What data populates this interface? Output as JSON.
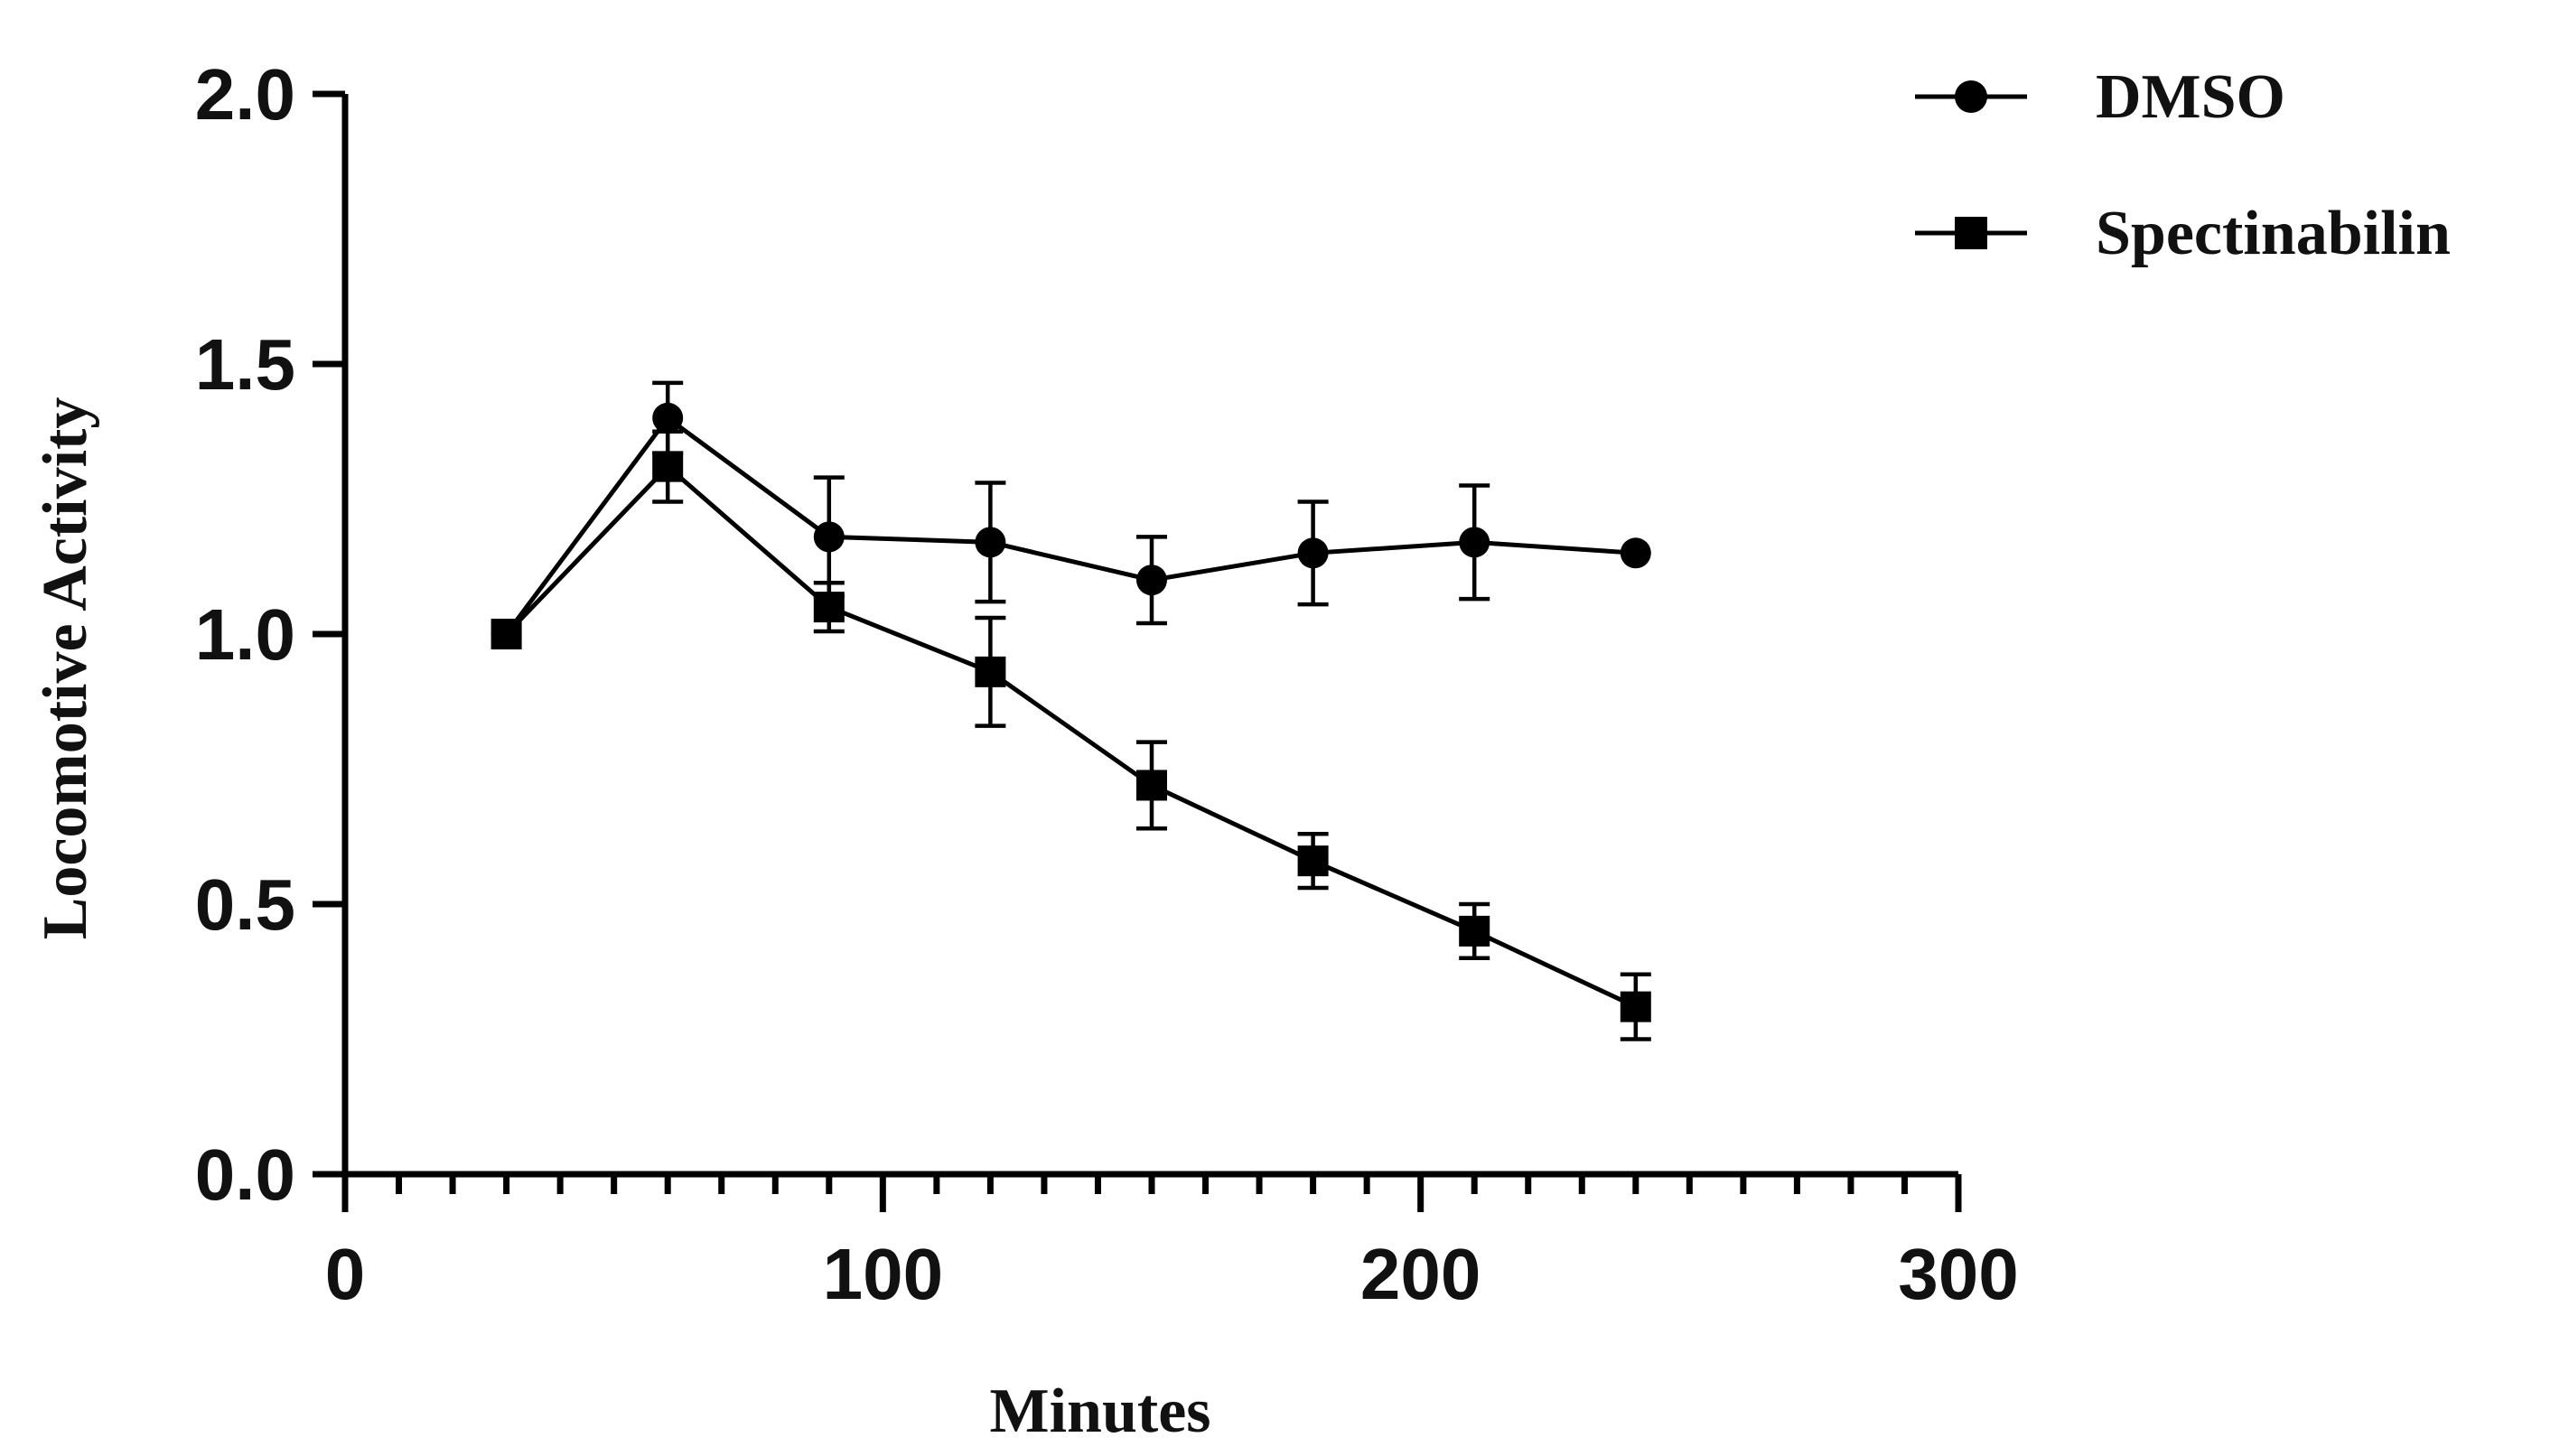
{
  "chart_data": {
    "type": "line",
    "title": "",
    "xlabel": "Minutes",
    "ylabel": "Locomotive Activity",
    "xlim": [
      0,
      300
    ],
    "ylim": [
      0,
      2.0
    ],
    "x_ticks": [
      0,
      100,
      200,
      300
    ],
    "x_tick_labels": [
      "0",
      "100",
      "200",
      "300"
    ],
    "x_minor_step": 10,
    "y_ticks": [
      0,
      0.5,
      1.0,
      1.5,
      2.0
    ],
    "y_tick_labels": [
      "0.0",
      "0.5",
      "1.0",
      "1.5",
      "2.0"
    ],
    "legend_position": "top-right",
    "series": [
      {
        "name": "DMSO",
        "marker": "circle",
        "x": [
          30,
          60,
          90,
          120,
          150,
          180,
          210,
          240
        ],
        "values": [
          1.0,
          1.4,
          1.18,
          1.17,
          1.1,
          1.15,
          1.17,
          1.15
        ],
        "errors": [
          0,
          0.065,
          0.11,
          0.11,
          0.08,
          0.095,
          0.105,
          0
        ]
      },
      {
        "name": "Spectinabilin",
        "marker": "square",
        "x": [
          30,
          60,
          90,
          120,
          150,
          180,
          210,
          240
        ],
        "values": [
          1.0,
          1.31,
          1.05,
          0.93,
          0.72,
          0.58,
          0.45,
          0.31
        ],
        "errors": [
          0,
          0.065,
          0.045,
          0.1,
          0.08,
          0.05,
          0.05,
          0.06
        ]
      }
    ]
  }
}
